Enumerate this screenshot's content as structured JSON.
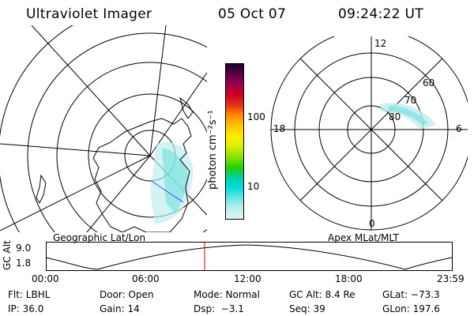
{
  "header": {
    "title": "Ultraviolet Imager",
    "date": "05 Oct 07",
    "time": "09:24:22 UT"
  },
  "geo_panel": {
    "label": "Geographic Lat/Lon"
  },
  "apex_panel": {
    "label": "Apex MLat/MLT",
    "mlt_labels": [
      "12",
      "18",
      "6",
      "0"
    ],
    "mlat_labels": [
      "60",
      "70",
      "80"
    ]
  },
  "colorbar": {
    "unit_label": "photon cm⁻²s⁻¹",
    "ticks": [
      "100",
      "10"
    ],
    "colors": [
      "#1a0033",
      "#5a0045",
      "#9c004c",
      "#cc0022",
      "#e8361a",
      "#ff8a00",
      "#ffc400",
      "#ffee00",
      "#d8f000",
      "#8ee000",
      "#22d000",
      "#00d2a0",
      "#00dcdc",
      "#70e6e6",
      "#b8eeee",
      "#e0f4f4"
    ]
  },
  "altitude_plot": {
    "ylabel": "GC Alt",
    "yticks": [
      "9.0",
      "1.8"
    ],
    "xticks": [
      "00:00",
      "06:00",
      "12:00",
      "18:00",
      "23:59"
    ],
    "current_time_marker": "09:24"
  },
  "footer": {
    "row1": [
      "Flt: LBHL",
      "Door: Open",
      "Mode: Normal",
      "GC Alt: 8.4 Re",
      "GLat: −73.3"
    ],
    "row2": [
      "IP: 36.0",
      "Gain: 14",
      "Dsp:  −3.1",
      "Seq: 39",
      "GLon: 197.6"
    ]
  }
}
